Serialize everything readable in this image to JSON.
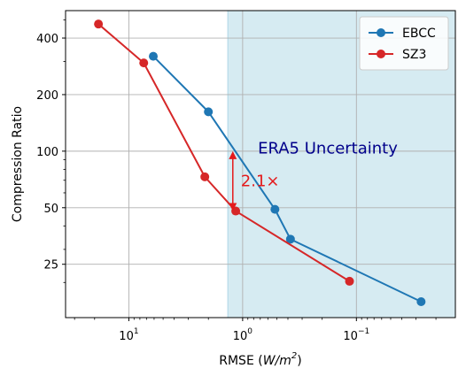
{
  "chart_data": {
    "type": "line",
    "xlabel": "RMSE (W/m²)",
    "xlabel_parts": {
      "pre": "RMSE (",
      "var": "W/m",
      "sup": "2",
      "post": ")"
    },
    "ylabel": "Compression Ratio",
    "x_scale": "log-reversed",
    "y_scale": "log",
    "xlim": [
      36,
      0.0135
    ],
    "ylim": [
      13,
      560
    ],
    "x_major_ticks": [
      {
        "value": 10,
        "base": "10",
        "exp": "1"
      },
      {
        "value": 1,
        "base": "10",
        "exp": "0"
      },
      {
        "value": 0.1,
        "base": "10",
        "exp": "−1"
      }
    ],
    "x_minor_ticks": [
      30,
      20,
      9,
      8,
      7,
      6,
      5,
      4,
      3,
      2,
      0.9,
      0.8,
      0.7,
      0.6,
      0.5,
      0.4,
      0.3,
      0.2,
      0.09,
      0.08,
      0.07,
      0.06,
      0.05,
      0.04,
      0.03,
      0.02
    ],
    "y_major_ticks": [
      {
        "value": 25,
        "label": "25"
      },
      {
        "value": 50,
        "label": "50"
      },
      {
        "value": 100,
        "label": "100"
      },
      {
        "value": 200,
        "label": "200"
      },
      {
        "value": 400,
        "label": "400"
      }
    ],
    "y_minor_ticks": [
      20,
      30,
      40,
      60,
      70,
      80,
      90,
      300,
      500
    ],
    "grid": true,
    "legend_position": "top-right",
    "series": [
      {
        "name": "EBCC",
        "color": "#1f77b4",
        "x": [
          6.1,
          2.0,
          0.52,
          0.38,
          0.027
        ],
        "y": [
          320,
          162,
          49,
          34,
          15.8
        ]
      },
      {
        "name": "SZ3",
        "color": "#d62728",
        "x": [
          18.5,
          7.4,
          2.15,
          1.15,
          0.115
        ],
        "y": [
          475,
          295,
          73,
          48,
          20.3
        ]
      }
    ],
    "shaded_region": {
      "label": "ERA5 Uncertainty",
      "x_from": 1.35,
      "x_to": 0.0135,
      "color": "#add8e6",
      "label_color": "#00008b"
    },
    "annotation": {
      "text": "2.1×",
      "x": 1.22,
      "y_from": 100,
      "y_to": 48,
      "color": "#e41a1c"
    }
  }
}
